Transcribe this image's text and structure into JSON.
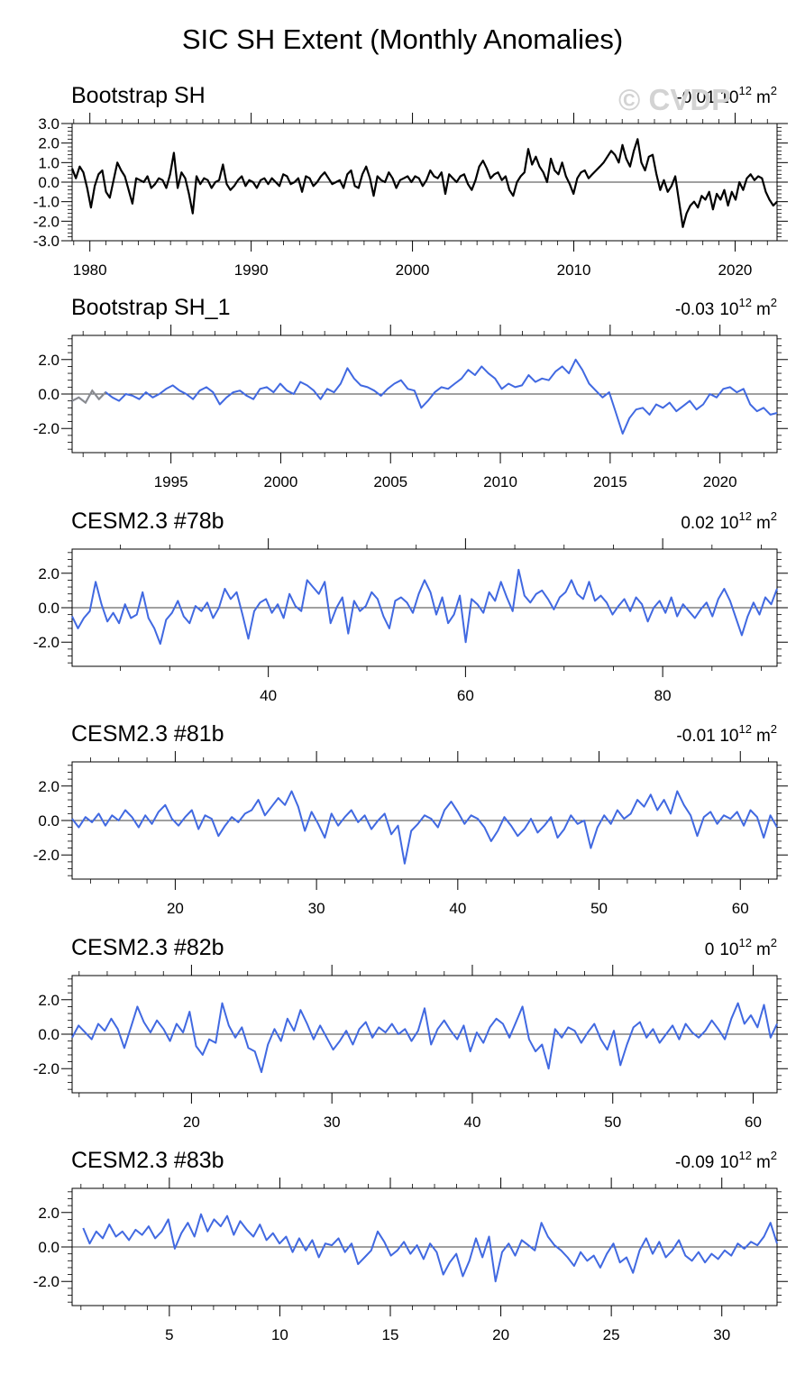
{
  "title": "SIC SH Extent (Monthly Anomalies)",
  "watermark": "© CVDP",
  "colors": {
    "observed": "#000000",
    "model": "#4169e1",
    "early_obs": "#8c8c8c",
    "zero_line": "#000000"
  },
  "chart_data": [
    {
      "type": "line",
      "title": "Bootstrap SH",
      "trend_value": "-0.01",
      "units_base": "10",
      "units_exp": "12",
      "units_suffix": "m",
      "units_sup": "2",
      "series_color": "observed",
      "x_range": [
        1978.9,
        2022.6
      ],
      "ylim": [
        -3.0,
        3.0
      ],
      "yticks": [
        -3.0,
        -2.0,
        -1.0,
        0.0,
        1.0,
        2.0,
        3.0
      ],
      "ytick_labels": [
        "-3.0",
        "-2.0",
        "-1.0",
        "0.0",
        "1.0",
        "2.0",
        "3.0"
      ],
      "xticks": [
        1980,
        1990,
        2000,
        2010,
        2020
      ],
      "xtick_labels": [
        "1980",
        "1990",
        "2000",
        "2010",
        "2020"
      ],
      "x_minor_step": 1,
      "y_minor_step": 0.2,
      "series": [
        {
          "name": "Bootstrap SH",
          "x_start": 1978.9,
          "x_end": 2022.6,
          "values": [
            0.7,
            0.2,
            0.8,
            0.5,
            -0.3,
            -1.3,
            -0.2,
            0.4,
            0.6,
            -0.5,
            -0.8,
            0.1,
            1.0,
            0.6,
            0.3,
            -0.4,
            -1.1,
            0.2,
            0.1,
            0.0,
            0.3,
            -0.3,
            -0.1,
            0.2,
            0.1,
            -0.3,
            0.4,
            1.5,
            -0.3,
            0.5,
            0.2,
            -0.6,
            -1.6,
            0.3,
            -0.1,
            0.2,
            0.1,
            -0.3,
            0.0,
            0.1,
            0.9,
            -0.1,
            -0.4,
            -0.2,
            0.1,
            0.3,
            -0.2,
            0.1,
            0.0,
            -0.3,
            0.1,
            0.2,
            -0.1,
            0.2,
            0.0,
            -0.2,
            0.4,
            0.3,
            -0.1,
            0.0,
            0.2,
            -0.5,
            0.3,
            0.2,
            -0.2,
            0.0,
            0.3,
            0.5,
            0.2,
            -0.1,
            0.0,
            0.1,
            -0.3,
            0.4,
            0.6,
            -0.2,
            -0.3,
            0.4,
            0.8,
            0.2,
            -0.7,
            0.3,
            0.1,
            0.0,
            0.5,
            0.2,
            -0.3,
            0.1,
            0.2,
            0.3,
            0.0,
            0.3,
            0.2,
            -0.2,
            0.1,
            0.6,
            0.3,
            0.2,
            0.5,
            -0.6,
            0.4,
            0.2,
            0.0,
            0.3,
            0.4,
            -0.1,
            -0.4,
            0.1,
            0.8,
            1.1,
            0.7,
            0.2,
            0.4,
            0.5,
            0.1,
            0.3,
            -0.4,
            -0.7,
            0.0,
            0.3,
            0.5,
            1.7,
            0.9,
            1.3,
            0.8,
            0.5,
            0.0,
            1.2,
            0.6,
            0.4,
            1.0,
            0.3,
            -0.1,
            -0.6,
            0.2,
            0.5,
            0.6,
            0.2,
            0.4,
            0.6,
            0.8,
            1.0,
            1.3,
            1.6,
            1.4,
            1.0,
            1.9,
            1.2,
            0.8,
            1.6,
            2.2,
            1.0,
            0.6,
            1.3,
            1.4,
            0.4,
            -0.4,
            0.1,
            -0.5,
            -0.2,
            0.3,
            -1.0,
            -2.3,
            -1.6,
            -1.2,
            -1.0,
            -1.3,
            -0.7,
            -0.9,
            -0.5,
            -1.4,
            -0.6,
            -0.9,
            -0.4,
            -1.2,
            -0.5,
            -0.9,
            0.0,
            -0.4,
            0.2,
            0.4,
            0.1,
            0.3,
            0.2,
            -0.5,
            -0.9,
            -1.2,
            -1.0
          ]
        }
      ]
    },
    {
      "type": "line",
      "title": "Bootstrap SH_1",
      "trend_value": "-0.03",
      "units_base": "10",
      "units_exp": "12",
      "units_suffix": "m",
      "units_sup": "2",
      "series_color": "model",
      "x_range": [
        1990.5,
        2022.6
      ],
      "ylim": [
        -3.4,
        3.4
      ],
      "yticks": [
        -2.0,
        0.0,
        2.0
      ],
      "ytick_labels": [
        "-2.0",
        "0.0",
        "2.0"
      ],
      "xticks": [
        1995,
        2000,
        2005,
        2010,
        2015,
        2020
      ],
      "xtick_labels": [
        "1995",
        "2000",
        "2005",
        "2010",
        "2015",
        "2020"
      ],
      "x_minor_step": 1,
      "y_minor_step": 0.4,
      "series": [
        {
          "name": "Bootstrap SH_1",
          "x_start": 1990.5,
          "x_end": 2022.6,
          "values": [
            -0.4,
            -0.2,
            -0.5,
            0.2,
            -0.3,
            0.1,
            -0.2,
            -0.4,
            0.0,
            -0.1,
            -0.3,
            0.1,
            -0.2,
            0.0,
            0.3,
            0.5,
            0.2,
            0.0,
            -0.3,
            0.2,
            0.4,
            0.1,
            -0.6,
            -0.2,
            0.1,
            0.2,
            -0.1,
            -0.3,
            0.3,
            0.4,
            0.1,
            0.6,
            0.2,
            0.0,
            0.7,
            0.5,
            0.2,
            -0.3,
            0.3,
            0.1,
            0.6,
            1.5,
            0.9,
            0.5,
            0.4,
            0.2,
            -0.1,
            0.3,
            0.6,
            0.8,
            0.3,
            0.2,
            -0.8,
            -0.4,
            0.1,
            0.4,
            0.3,
            0.6,
            0.9,
            1.4,
            1.1,
            1.6,
            1.2,
            0.9,
            0.3,
            0.6,
            0.4,
            0.5,
            1.1,
            0.7,
            0.9,
            0.8,
            1.3,
            1.6,
            1.2,
            2.0,
            1.4,
            0.6,
            0.2,
            -0.2,
            0.1,
            -1.1,
            -2.3,
            -1.4,
            -0.9,
            -0.8,
            -1.2,
            -0.6,
            -0.8,
            -0.5,
            -1.0,
            -0.7,
            -0.4,
            -0.9,
            -0.6,
            0.0,
            -0.2,
            0.3,
            0.4,
            0.1,
            0.3,
            -0.6,
            -1.0,
            -0.8,
            -1.2,
            -1.1
          ]
        }
      ]
    },
    {
      "type": "line",
      "title": "CESM2.3 #78b",
      "trend_value": "0.02",
      "units_base": "10",
      "units_exp": "12",
      "units_suffix": "m",
      "units_sup": "2",
      "series_color": "model",
      "x_range": [
        20.1,
        91.6
      ],
      "ylim": [
        -3.4,
        3.4
      ],
      "yticks": [
        -2.0,
        0.0,
        2.0
      ],
      "ytick_labels": [
        "-2.0",
        "0.0",
        "2.0"
      ],
      "xticks": [
        40,
        60,
        80
      ],
      "xtick_labels": [
        "40",
        "60",
        "80"
      ],
      "x_minor_step": 5,
      "y_minor_step": 0.4,
      "series": [
        {
          "name": "CESM2.3 #78b",
          "x_start": 20.1,
          "x_end": 91.6,
          "values": [
            -0.5,
            -1.2,
            -0.6,
            -0.2,
            1.5,
            0.2,
            -0.8,
            -0.3,
            -0.9,
            0.2,
            -0.6,
            -0.4,
            0.9,
            -0.6,
            -1.2,
            -2.1,
            -0.7,
            -0.3,
            0.4,
            -0.5,
            -0.9,
            0.1,
            -0.2,
            0.3,
            -0.6,
            0.0,
            1.1,
            0.5,
            0.9,
            -0.4,
            -1.8,
            -0.2,
            0.3,
            0.5,
            -0.3,
            0.2,
            -0.6,
            0.8,
            0.1,
            -0.2,
            1.6,
            1.2,
            0.8,
            1.5,
            -0.9,
            0.0,
            0.6,
            -1.5,
            0.4,
            -0.2,
            0.1,
            0.9,
            0.5,
            -0.5,
            -1.2,
            0.4,
            0.6,
            0.3,
            -0.3,
            0.8,
            1.6,
            0.9,
            -0.4,
            0.6,
            -0.9,
            -0.4,
            0.7,
            -2.0,
            0.5,
            0.2,
            -0.3,
            0.9,
            0.4,
            1.5,
            0.6,
            -0.2,
            2.2,
            0.7,
            0.3,
            0.8,
            1.0,
            0.5,
            -0.1,
            0.6,
            0.9,
            1.6,
            0.8,
            0.5,
            1.5,
            0.4,
            0.7,
            0.3,
            -0.4,
            0.1,
            0.5,
            -0.2,
            0.6,
            0.2,
            -0.8,
            0.0,
            0.4,
            -0.3,
            0.6,
            -0.5,
            0.2,
            -0.2,
            -0.6,
            -0.1,
            0.3,
            -0.5,
            0.5,
            1.1,
            0.4,
            -0.6,
            -1.6,
            -0.5,
            0.3,
            -0.4,
            0.6,
            0.2,
            1.1
          ]
        }
      ]
    },
    {
      "type": "line",
      "title": "CESM2.3 #81b",
      "trend_value": "-0.01",
      "units_base": "10",
      "units_exp": "12",
      "units_suffix": "m",
      "units_sup": "2",
      "series_color": "model",
      "x_range": [
        12.7,
        62.6
      ],
      "ylim": [
        -3.4,
        3.4
      ],
      "yticks": [
        -2.0,
        0.0,
        2.0
      ],
      "ytick_labels": [
        "-2.0",
        "0.0",
        "2.0"
      ],
      "xticks": [
        20,
        30,
        40,
        50,
        60
      ],
      "xtick_labels": [
        "20",
        "30",
        "40",
        "50",
        "60"
      ],
      "x_minor_step": 2,
      "y_minor_step": 0.4,
      "series": [
        {
          "name": "CESM2.3 #81b",
          "x_start": 12.7,
          "x_end": 62.6,
          "values": [
            0.1,
            -0.4,
            0.2,
            -0.1,
            0.4,
            -0.3,
            0.3,
            0.0,
            0.6,
            0.2,
            -0.4,
            0.3,
            -0.2,
            0.5,
            0.9,
            0.1,
            -0.3,
            0.2,
            0.6,
            -0.5,
            0.3,
            0.1,
            -0.9,
            -0.3,
            0.2,
            -0.1,
            0.4,
            0.6,
            1.2,
            0.3,
            0.8,
            1.3,
            0.9,
            1.7,
            0.8,
            -0.6,
            0.5,
            -0.2,
            -1.0,
            0.4,
            -0.3,
            0.2,
            0.6,
            -0.1,
            0.3,
            -0.5,
            0.0,
            0.4,
            -0.8,
            -0.3,
            -2.5,
            -0.6,
            -0.2,
            0.3,
            0.1,
            -0.4,
            0.6,
            1.1,
            0.5,
            -0.2,
            0.3,
            0.1,
            -0.4,
            -1.2,
            -0.6,
            0.2,
            -0.3,
            -0.9,
            -0.5,
            0.1,
            -0.7,
            -0.3,
            0.2,
            -1.0,
            -0.5,
            0.3,
            -0.2,
            0.0,
            -1.6,
            -0.4,
            0.3,
            -0.2,
            0.6,
            0.1,
            0.4,
            1.2,
            0.8,
            1.5,
            0.6,
            1.2,
            0.4,
            1.7,
            0.9,
            0.3,
            -0.9,
            0.2,
            0.5,
            -0.2,
            0.3,
            0.1,
            0.5,
            -0.3,
            0.6,
            0.2,
            -1.0,
            0.3,
            -0.4
          ]
        }
      ]
    },
    {
      "type": "line",
      "title": "CESM2.3 #82b",
      "trend_value": "0",
      "units_base": "10",
      "units_exp": "12",
      "units_suffix": "m",
      "units_sup": "2",
      "series_color": "model",
      "x_range": [
        11.5,
        61.7
      ],
      "ylim": [
        -3.4,
        3.4
      ],
      "yticks": [
        -2.0,
        0.0,
        2.0
      ],
      "ytick_labels": [
        "-2.0",
        "0.0",
        "2.0"
      ],
      "xticks": [
        20,
        30,
        40,
        50,
        60
      ],
      "xtick_labels": [
        "20",
        "30",
        "40",
        "50",
        "60"
      ],
      "x_minor_step": 2,
      "y_minor_step": 0.4,
      "series": [
        {
          "name": "CESM2.3 #82b",
          "x_start": 11.5,
          "x_end": 61.7,
          "values": [
            -0.2,
            0.5,
            0.1,
            -0.3,
            0.6,
            0.2,
            0.9,
            0.3,
            -0.8,
            0.4,
            1.6,
            0.7,
            0.1,
            0.8,
            0.3,
            -0.4,
            0.6,
            0.1,
            1.3,
            -0.7,
            -1.2,
            -0.3,
            -0.5,
            1.8,
            0.5,
            -0.2,
            0.4,
            -0.8,
            -1.0,
            -2.2,
            -0.6,
            0.3,
            -0.4,
            0.9,
            0.2,
            1.4,
            0.6,
            -0.3,
            0.5,
            -0.2,
            -0.9,
            -0.4,
            0.2,
            -0.6,
            0.3,
            0.7,
            -0.2,
            0.4,
            0.1,
            0.6,
            0.0,
            0.3,
            -0.4,
            0.2,
            1.5,
            -0.6,
            0.3,
            0.8,
            0.2,
            -0.3,
            0.5,
            -1.0,
            0.1,
            -0.5,
            0.4,
            0.9,
            0.6,
            -0.2,
            0.7,
            1.6,
            -0.3,
            -1.0,
            -0.6,
            -2.0,
            0.3,
            -0.2,
            0.4,
            0.2,
            -0.5,
            0.1,
            0.6,
            -0.3,
            -0.9,
            0.2,
            -1.8,
            -0.6,
            0.4,
            0.7,
            -0.2,
            0.3,
            -0.5,
            0.0,
            0.5,
            -0.3,
            0.6,
            0.1,
            -0.2,
            0.2,
            0.8,
            0.3,
            -0.3,
            0.9,
            1.8,
            0.6,
            1.1,
            0.4,
            1.7,
            -0.2,
            0.6
          ]
        }
      ]
    },
    {
      "type": "line",
      "title": "CESM2.3 #83b",
      "trend_value": "-0.09",
      "units_base": "10",
      "units_exp": "12",
      "units_suffix": "m",
      "units_sup": "2",
      "series_color": "model",
      "x_range": [
        0.6,
        32.5
      ],
      "ylim": [
        -3.4,
        3.4
      ],
      "yticks": [
        -2.0,
        0.0,
        2.0
      ],
      "ytick_labels": [
        "-2.0",
        "0.0",
        "2.0"
      ],
      "xticks": [
        5,
        10,
        15,
        20,
        25,
        30
      ],
      "xtick_labels": [
        "5",
        "10",
        "15",
        "20",
        "25",
        "30"
      ],
      "x_minor_step": 1,
      "y_minor_step": 0.4,
      "series": [
        {
          "name": "CESM2.3 #83b",
          "x_start": 1.1,
          "x_end": 32.5,
          "values": [
            1.1,
            0.2,
            0.9,
            0.5,
            1.3,
            0.6,
            0.9,
            0.4,
            1.0,
            0.7,
            1.2,
            0.5,
            0.9,
            1.6,
            -0.1,
            0.8,
            1.4,
            0.6,
            1.9,
            0.9,
            1.6,
            1.2,
            1.8,
            0.7,
            1.5,
            1.0,
            0.6,
            1.3,
            0.4,
            0.8,
            0.2,
            0.6,
            -0.3,
            0.5,
            -0.2,
            0.4,
            -0.6,
            0.2,
            0.1,
            0.5,
            -0.3,
            0.2,
            -1.0,
            -0.6,
            -0.2,
            0.9,
            0.3,
            -0.5,
            -0.2,
            0.3,
            -0.4,
            0.1,
            -0.7,
            0.2,
            -0.3,
            -1.6,
            -0.9,
            -0.4,
            -1.7,
            -0.8,
            0.5,
            -0.6,
            0.6,
            -2.0,
            -0.3,
            0.2,
            -0.5,
            0.4,
            0.1,
            -0.2,
            1.4,
            0.6,
            0.1,
            -0.2,
            -0.6,
            -1.1,
            -0.3,
            -0.8,
            -0.5,
            -1.2,
            -0.4,
            0.2,
            -0.9,
            -0.6,
            -1.5,
            -0.2,
            0.5,
            -0.4,
            0.3,
            -0.6,
            -0.2,
            0.4,
            -0.5,
            -0.8,
            -0.3,
            -0.9,
            -0.4,
            -0.7,
            -0.2,
            -0.5,
            0.2,
            -0.1,
            0.3,
            0.1,
            0.6,
            1.4,
            0.2
          ]
        }
      ]
    }
  ]
}
